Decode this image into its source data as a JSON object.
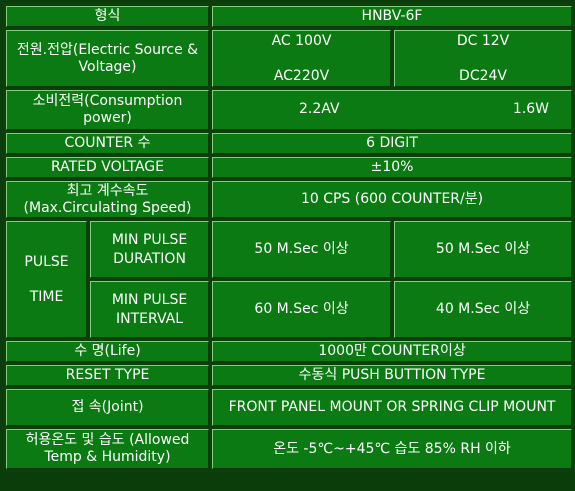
{
  "rows": {
    "model": {
      "label": "형식",
      "value": "HNBV-6F"
    },
    "power": {
      "label": "전원.전압(Electric Source & Voltage)",
      "ac_top": "AC 100V",
      "ac_bottom": "AC220V",
      "dc_top": "DC 12V",
      "dc_bottom": "DC24V"
    },
    "consumption": {
      "label": "소비전력(Consumption power)",
      "ac_value": "2.2AV",
      "dc_value": "1.6W"
    },
    "counter": {
      "label": "COUNTER 수",
      "value": "6 DIGIT"
    },
    "rated_voltage": {
      "label": "RATED VOLTAGE",
      "value": "±10%"
    },
    "max_speed": {
      "label_line1": "최고 계수속도",
      "label_line2": "(Max.Circulating Speed)",
      "value": "10 CPS (600 COUNTER/분)"
    },
    "pulse_time": {
      "label_line1": "PULSE",
      "label_line2": "TIME",
      "duration": {
        "label_line1": "MIN PULSE",
        "label_line2": "DURATION",
        "ac_value": "50 M.Sec 이상",
        "dc_value": "50 M.Sec 이상"
      },
      "interval": {
        "label_line1": "MIN PULSE",
        "label_line2": "INTERVAL",
        "ac_value": "60 M.Sec 이상",
        "dc_value": "40 M.Sec 이상"
      }
    },
    "life": {
      "label": "수 명(Life)",
      "value": "1000만 COUNTER이상"
    },
    "reset_type": {
      "label": "RESET TYPE",
      "value": "수동식  PUSH  BUTTION  TYPE"
    },
    "joint": {
      "label": "접 속(Joint)",
      "value": "FRONT PANEL MOUNT OR SPRING CLIP MOUNT"
    },
    "temp_humidity": {
      "label": "허용온도 및 습도 (Allowed Temp & Humidity)",
      "value": "온도 -5℃~+45℃  습도 85% RH 이하"
    }
  }
}
